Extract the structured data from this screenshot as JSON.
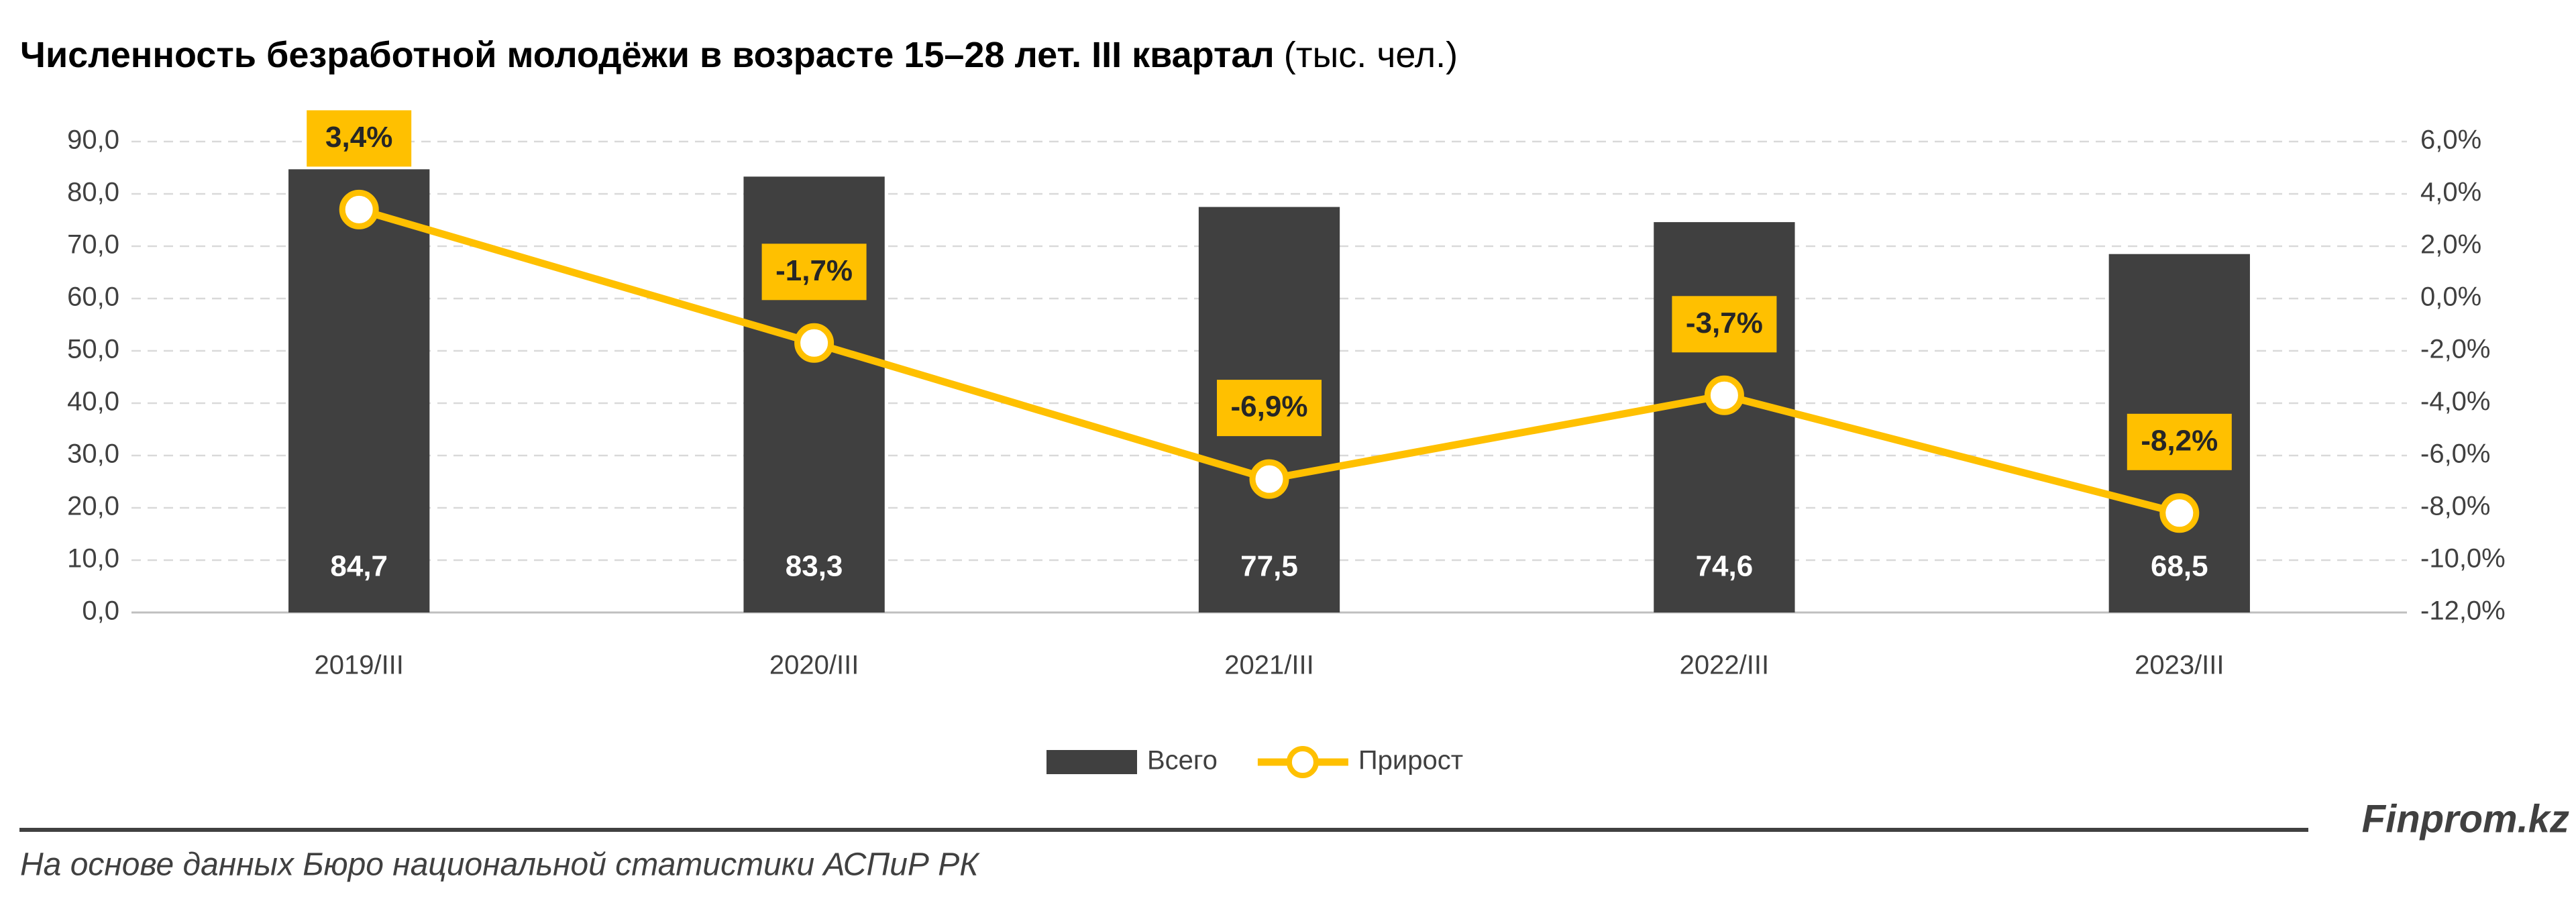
{
  "chart_data": {
    "type": "combo",
    "title": "Численность безработной молодёжи в возрасте 15–28 лет. III квартал",
    "title_unit": "(тыс. чел.)",
    "categories": [
      "2019/III",
      "2020/III",
      "2021/III",
      "2022/III",
      "2023/III"
    ],
    "series": [
      {
        "name": "Всего",
        "type": "bar",
        "color": "#404040",
        "values": [
          84.7,
          83.3,
          77.5,
          74.6,
          68.5
        ],
        "value_labels": [
          "84,7",
          "83,3",
          "77,5",
          "74,6",
          "68,5"
        ]
      },
      {
        "name": "Прирост",
        "type": "line",
        "axis": "y2",
        "color": "#ffc000",
        "values": [
          3.4,
          -1.7,
          -6.9,
          -3.7,
          -8.2
        ],
        "value_labels": [
          "3,4%",
          "-1,7%",
          "-6,9%",
          "-3,7%",
          "-8,2%"
        ]
      }
    ],
    "ylim": [
      0,
      90
    ],
    "yticks": [
      {
        "value": 0,
        "label": "0,0"
      },
      {
        "value": 10,
        "label": "10,0"
      },
      {
        "value": 20,
        "label": "20,0"
      },
      {
        "value": 30,
        "label": "30,0"
      },
      {
        "value": 40,
        "label": "40,0"
      },
      {
        "value": 50,
        "label": "50,0"
      },
      {
        "value": 60,
        "label": "60,0"
      },
      {
        "value": 70,
        "label": "70,0"
      },
      {
        "value": 80,
        "label": "80,0"
      },
      {
        "value": 90,
        "label": "90,0"
      }
    ],
    "y2lim": [
      -12,
      6
    ],
    "y2ticks": [
      {
        "value": -12,
        "label": "-12,0%"
      },
      {
        "value": -10,
        "label": "-10,0%"
      },
      {
        "value": -8,
        "label": "-8,0%"
      },
      {
        "value": -6,
        "label": "-6,0%"
      },
      {
        "value": -4,
        "label": "-4,0%"
      },
      {
        "value": -2,
        "label": "-2,0%"
      },
      {
        "value": 0,
        "label": "0,0%"
      },
      {
        "value": 2,
        "label": "2,0%"
      },
      {
        "value": 4,
        "label": "4,0%"
      },
      {
        "value": 6,
        "label": "6,0%"
      }
    ],
    "grid": true,
    "legend": "bottom"
  },
  "footer": {
    "brand": "Finprom.kz",
    "source": "На основе данных Бюро национальной статистики АСПиР РК"
  }
}
